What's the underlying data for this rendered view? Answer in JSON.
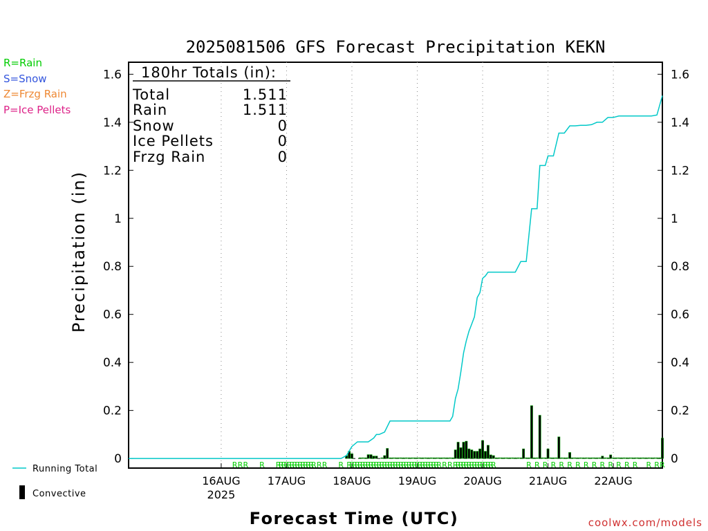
{
  "chart_data": {
    "type": "line",
    "title": "2025081506 GFS Forecast Precipitation KEKN",
    "xlabel": "Forecast Time (UTC)",
    "ylabel": "Precipitation (in)",
    "ylim": [
      -0.04,
      1.65
    ],
    "yticks": [
      0,
      0.2,
      0.4,
      0.6,
      0.8,
      1,
      1.2,
      1.4,
      1.6
    ],
    "ytick_labels": [
      "0",
      "0.2",
      "0.4",
      "0.6",
      "0.8",
      "1",
      "1.2",
      "1.4",
      "1.6"
    ],
    "xlim": [
      -16,
      180
    ],
    "x_units": "forecast hour",
    "xticks": [
      {
        "hour": 18,
        "label": "16AUG",
        "sublabel": "2025"
      },
      {
        "hour": 42,
        "label": "17AUG",
        "sublabel": ""
      },
      {
        "hour": 66,
        "label": "18AUG",
        "sublabel": ""
      },
      {
        "hour": 90,
        "label": "19AUG",
        "sublabel": ""
      },
      {
        "hour": 114,
        "label": "20AUG",
        "sublabel": ""
      },
      {
        "hour": 138,
        "label": "21AUG",
        "sublabel": ""
      },
      {
        "hour": 162,
        "label": "22AUG",
        "sublabel": ""
      }
    ],
    "grid": "vertical dotted at day boundaries",
    "running_total": {
      "name": "Running Total",
      "color": "#00c8c8",
      "x": [
        -16,
        62,
        64,
        66,
        68,
        70,
        72,
        74,
        75,
        76,
        78,
        80,
        82,
        84,
        86,
        88,
        90,
        92,
        94,
        96,
        98,
        100,
        102,
        103,
        104,
        105,
        106,
        107,
        108,
        109,
        110,
        111,
        112,
        113,
        114,
        115,
        116,
        117,
        118,
        120,
        124,
        126,
        128,
        130,
        132,
        134,
        135,
        136,
        137,
        138,
        140,
        142,
        144,
        146,
        148,
        150,
        152,
        154,
        156,
        158,
        160,
        162,
        164,
        166,
        168,
        170,
        172,
        174,
        176,
        178,
        180
      ],
      "y": [
        0,
        0,
        0.012,
        0.05,
        0.069,
        0.069,
        0.069,
        0.085,
        0.1,
        0.1,
        0.11,
        0.156,
        0.156,
        0.156,
        0.156,
        0.156,
        0.156,
        0.156,
        0.156,
        0.156,
        0.156,
        0.156,
        0.156,
        0.175,
        0.25,
        0.29,
        0.36,
        0.44,
        0.49,
        0.53,
        0.56,
        0.59,
        0.67,
        0.69,
        0.75,
        0.76,
        0.776,
        0.776,
        0.776,
        0.776,
        0.776,
        0.776,
        0.82,
        0.82,
        1.04,
        1.04,
        1.22,
        1.22,
        1.22,
        1.26,
        1.26,
        1.355,
        1.355,
        1.385,
        1.385,
        1.387,
        1.387,
        1.39,
        1.4,
        1.4,
        1.42,
        1.42,
        1.426,
        1.426,
        1.426,
        1.426,
        1.426,
        1.426,
        1.426,
        1.43,
        1.511
      ]
    },
    "convective": {
      "name": "Convective",
      "color": "#000000",
      "fill": "#00a000",
      "x": [
        64,
        65,
        66,
        69,
        70,
        71,
        72,
        73,
        74,
        75,
        77,
        78,
        79,
        80,
        81,
        82,
        83,
        84,
        85,
        86,
        87,
        88,
        89,
        90,
        91,
        92,
        93,
        94,
        95,
        96,
        97,
        98,
        99,
        100,
        101,
        102,
        103,
        104,
        105,
        106,
        107,
        108,
        109,
        110,
        111,
        112,
        113,
        114,
        115,
        116,
        117,
        118,
        119,
        120,
        121,
        122,
        123,
        124,
        125,
        126,
        127,
        128,
        129,
        130,
        131,
        132,
        133,
        134,
        135,
        136,
        137,
        138,
        139,
        140,
        141,
        142,
        143,
        144,
        145,
        146,
        147,
        148,
        149,
        150,
        151,
        152,
        153,
        154,
        155,
        156,
        157,
        158,
        159,
        160,
        161,
        162,
        163,
        164,
        165,
        166,
        167,
        168,
        169,
        170,
        171,
        172,
        173,
        174,
        175,
        176,
        177,
        178,
        179,
        180
      ],
      "values": [
        0.012,
        0.03,
        0.02,
        0.001,
        0.002,
        0.002,
        0.016,
        0.016,
        0.01,
        0.01,
        0.001,
        0.012,
        0.042,
        0.002,
        0.002,
        0.002,
        0.001,
        0.001,
        0.001,
        0.001,
        0.001,
        0.001,
        0.001,
        0.001,
        0.001,
        0.001,
        0.001,
        0.001,
        0.001,
        0.001,
        0.001,
        0.001,
        0.001,
        0.001,
        0.001,
        0.001,
        0.001,
        0.036,
        0.068,
        0.045,
        0.068,
        0.072,
        0.04,
        0.036,
        0.03,
        0.03,
        0.04,
        0.075,
        0.03,
        0.055,
        0.015,
        0.012,
        0.002,
        0.001,
        0.001,
        0.001,
        0.001,
        0.001,
        0.001,
        0.001,
        0.001,
        0.001,
        0.04,
        0.001,
        0.001,
        0.22,
        0.001,
        0.001,
        0.18,
        0.001,
        0.001,
        0.04,
        0.001,
        0.001,
        0.001,
        0.09,
        0.001,
        0.001,
        0.001,
        0.025,
        0.001,
        0.001,
        0.001,
        0.001,
        0.001,
        0.001,
        0.001,
        0.001,
        0.001,
        0.001,
        0.001,
        0.01,
        0.001,
        0.001,
        0.015,
        0.001,
        0.001,
        0.001,
        0.001,
        0.001,
        0.001,
        0.001,
        0.001,
        0.001,
        0.001,
        0.001,
        0.001,
        0.001,
        0.001,
        0.001,
        0.001,
        0.001,
        0.001,
        0.085
      ]
    },
    "precip_type_marks": {
      "letter": "R",
      "color": "#00cc00",
      "hours": [
        23,
        25,
        27,
        33,
        39,
        40,
        41,
        42,
        43,
        44,
        45,
        46,
        47,
        48,
        49,
        50,
        51,
        52,
        54,
        56,
        62,
        65,
        66,
        67,
        68,
        69,
        70,
        71,
        72,
        73,
        74,
        75,
        76,
        77,
        78,
        79,
        80,
        81,
        82,
        83,
        84,
        85,
        86,
        87,
        88,
        89,
        90,
        91,
        92,
        93,
        94,
        95,
        96,
        97,
        98,
        100,
        102,
        104,
        105,
        106,
        107,
        108,
        109,
        110,
        111,
        112,
        113,
        114,
        115,
        116,
        117,
        118,
        131,
        134,
        137,
        140,
        143,
        146,
        149,
        152,
        155,
        158,
        161,
        164,
        167,
        170,
        175,
        178,
        180
      ]
    }
  },
  "totals_box": {
    "heading": "180hr Totals (in):",
    "rows": [
      {
        "label": "Total",
        "value": "1.511"
      },
      {
        "label": "Rain",
        "value": "1.511"
      },
      {
        "label": "Snow",
        "value": "0"
      },
      {
        "label": "Ice Pellets",
        "value": "0"
      },
      {
        "label": "Frzg Rain",
        "value": "0"
      }
    ]
  },
  "type_legend": [
    {
      "text": "R=Rain",
      "color": "#00cc00"
    },
    {
      "text": "S=Snow",
      "color": "#3355dd"
    },
    {
      "text": "Z=Frzg Rain",
      "color": "#ee8833"
    },
    {
      "text": "P=Ice Pellets",
      "color": "#dd2288"
    }
  ],
  "series_legend": {
    "running_total": "Running Total",
    "convective": "Convective"
  },
  "credit": {
    "text": "coolwx.com/models",
    "color": "#d03030"
  }
}
